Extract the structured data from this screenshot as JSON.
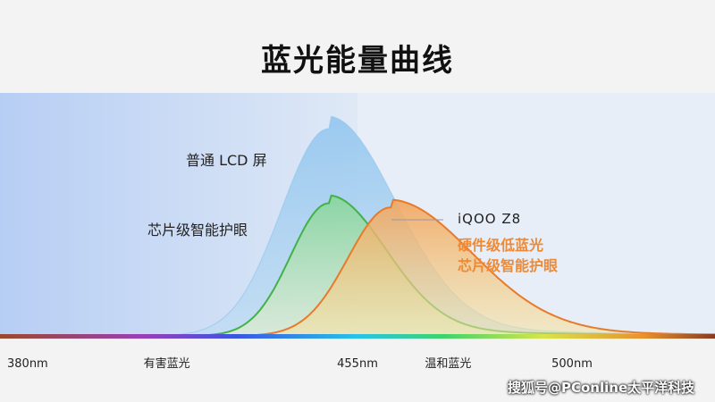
{
  "title": "蓝光能量曲线",
  "labels": {
    "lcd": "普通 LCD 屏",
    "chip": "芯片级智能护眼",
    "brand": "iQOO Z8",
    "feature_1": "硬件级低蓝光",
    "feature_2": "芯片级智能护眼"
  },
  "watermark": "搜狐号@PConline太平洋科技",
  "colors": {
    "lcd": "#8fc4ee",
    "chip": "#43b149",
    "iqoo": "#e67b2c",
    "harmful_band": "#b8cff3"
  },
  "chart_data": {
    "type": "area",
    "title": "蓝光能量曲线",
    "xlabel": "",
    "ylabel": "",
    "x_ticks": [
      {
        "value": 380,
        "label": "380nm"
      },
      {
        "value": 455,
        "label": "455nm"
      },
      {
        "value": 500,
        "label": "500nm"
      }
    ],
    "regions": [
      {
        "label": "有害蓝光",
        "x_range": [
          380,
          455
        ]
      },
      {
        "label": "温和蓝光",
        "x_range": [
          455,
          530
        ]
      }
    ],
    "xlim": [
      380,
      530
    ],
    "grid": false,
    "series": [
      {
        "name": "普通 LCD 屏",
        "color": "#8fc4ee",
        "peak_x": 449,
        "peak": 1.0,
        "width_left": 10,
        "width_right": 14
      },
      {
        "name": "芯片级智能护眼",
        "color": "#43b149",
        "peak_x": 449,
        "peak": 0.64,
        "width_left": 8,
        "width_right": 12
      },
      {
        "name": "iQOO Z8",
        "color": "#e67b2c",
        "peak_x": 462,
        "peak": 0.62,
        "width_left": 9,
        "width_right": 17
      }
    ]
  }
}
